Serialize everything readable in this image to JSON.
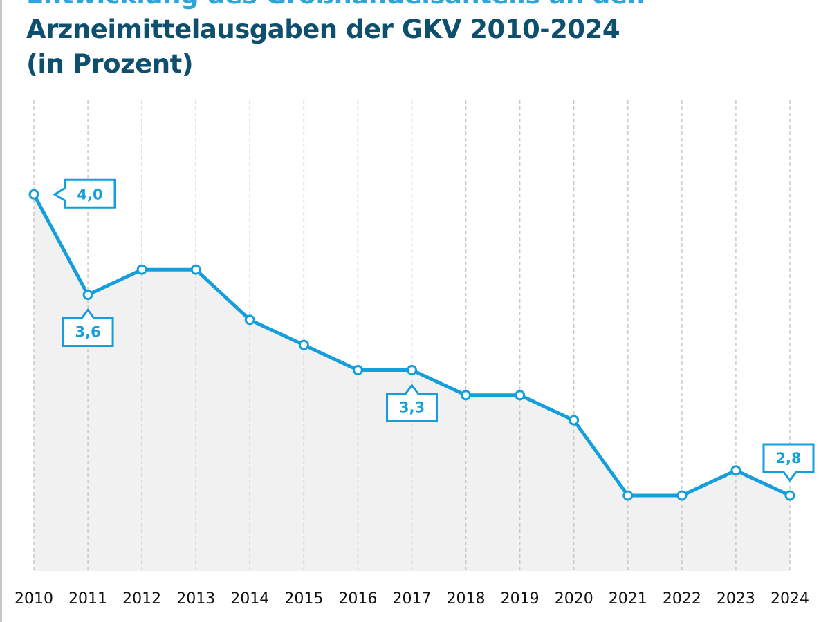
{
  "chart_data": {
    "type": "area",
    "title_lines": [
      "Entwicklung des Großhandelsanteils an den",
      "Arzneimittelausgaben der GKV 2010-2024",
      "(in Prozent)"
    ],
    "xlabel": "",
    "ylabel": "",
    "x": [
      "2010",
      "2011",
      "2012",
      "2013",
      "2014",
      "2015",
      "2016",
      "2017",
      "2018",
      "2019",
      "2020",
      "2021",
      "2022",
      "2023",
      "2024"
    ],
    "values": [
      4.0,
      3.6,
      3.7,
      3.7,
      3.5,
      3.4,
      3.3,
      3.3,
      3.2,
      3.2,
      3.1,
      2.8,
      2.8,
      2.9,
      2.8
    ],
    "ylim": [
      2.5,
      4.4
    ],
    "grid": "vertical dashed",
    "data_labels": [
      {
        "year": "2010",
        "text": "4,0",
        "side": "right"
      },
      {
        "year": "2011",
        "text": "3,6",
        "side": "below"
      },
      {
        "year": "2017",
        "text": "3,3",
        "side": "below"
      },
      {
        "year": "2024",
        "text": "2,8",
        "side": "above"
      }
    ],
    "colors": {
      "line": "#149fdc",
      "area": "#f1f1f1",
      "grid": "#c8c8c8",
      "title_line1": "#2aa6db",
      "title": "#0e4f6e"
    }
  }
}
